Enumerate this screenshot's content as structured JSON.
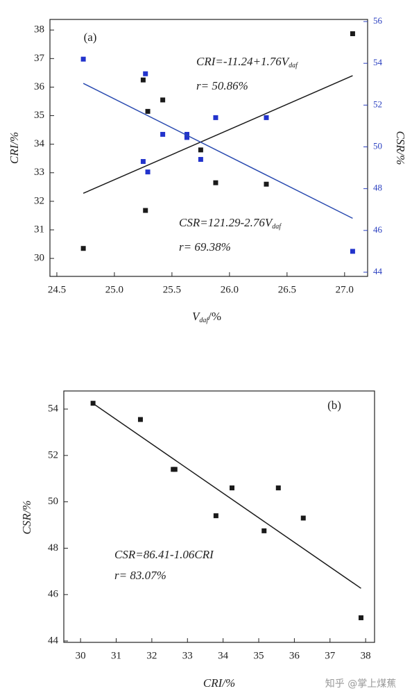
{
  "chart_data": [
    {
      "type": "scatter",
      "panel_label": "(a)",
      "xlabel": {
        "text": "V",
        "sub": "daf",
        "suffix": "/%"
      },
      "ylabel": "CRI/%",
      "y2label": "CSR/%",
      "xlim": [
        24.44,
        27.2
      ],
      "ylim": [
        29.37,
        38.37
      ],
      "y2lim": [
        43.8,
        56.1
      ],
      "xticks": [
        24.5,
        {
          "value": 25,
          "label": "25.0"
        },
        25.5,
        {
          "value": 26,
          "label": "26.0"
        },
        26.5,
        {
          "value": 27,
          "label": "27.0"
        }
      ],
      "yticks": [
        30,
        31,
        32,
        33,
        34,
        35,
        36,
        37,
        38
      ],
      "y2ticks": [
        44,
        46,
        48,
        50,
        52,
        54,
        56
      ],
      "y2_color": "#2a3fc0",
      "series": [
        {
          "mode": "markers",
          "color": "#1a1a1a",
          "x": [
            24.73,
            25.25,
            25.27,
            25.29,
            25.42,
            25.63,
            25.75,
            25.88,
            26.32,
            27.07
          ],
          "values": [
            30.35,
            36.25,
            31.68,
            35.15,
            35.55,
            34.25,
            33.8,
            32.65,
            32.6,
            37.87
          ]
        },
        {
          "mode": "markers",
          "color": "#2233cc",
          "axis": "y2",
          "x": [
            24.73,
            25.27,
            25.25,
            25.29,
            25.42,
            25.63,
            25.63,
            25.75,
            25.88,
            26.32,
            27.07
          ],
          "values": [
            54.2,
            53.5,
            49.3,
            48.8,
            50.6,
            50.6,
            50.45,
            49.4,
            51.4,
            51.4,
            45.0
          ]
        },
        {
          "mode": "line",
          "color": "#1a1a1a",
          "x": [
            24.73,
            27.07
          ],
          "values": [
            32.28,
            36.4
          ]
        },
        {
          "mode": "line",
          "color": "#2a4bb0",
          "axis": "y2",
          "x": [
            24.73,
            27.07
          ],
          "values": [
            53.04,
            46.58
          ]
        }
      ],
      "annotations": [
        {
          "text": "CRI=-11.24+1.76V",
          "sub": "daf"
        },
        {
          "text": "r= 50.86%"
        },
        {
          "text": "CSR=121.29-2.76V",
          "sub": "daf"
        },
        {
          "text": "r= 69.38%"
        }
      ]
    },
    {
      "type": "scatter",
      "panel_label": "(b)",
      "xlabel": {
        "text": "CRI/%"
      },
      "ylabel": "CSR/%",
      "xlim": [
        29.53,
        38.25
      ],
      "ylim": [
        43.94,
        54.78
      ],
      "xticks": [
        30,
        31,
        32,
        33,
        34,
        35,
        36,
        37,
        38
      ],
      "yticks": [
        44,
        46,
        48,
        50,
        52,
        54
      ],
      "series": [
        {
          "mode": "markers",
          "color": "#1a1a1a",
          "x": [
            30.35,
            31.68,
            32.6,
            32.65,
            33.8,
            34.25,
            35.15,
            35.55,
            36.25,
            37.87
          ],
          "values": [
            54.25,
            53.55,
            51.4,
            51.4,
            49.4,
            50.6,
            48.75,
            50.6,
            49.3,
            45.0
          ]
        },
        {
          "mode": "line",
          "color": "#1a1a1a",
          "x": [
            30.35,
            37.87
          ],
          "values": [
            54.24,
            46.27
          ]
        }
      ],
      "annotations": [
        {
          "text": "CSR=86.41-1.06CRI"
        },
        {
          "text": "r= 83.07%"
        }
      ]
    }
  ],
  "watermark": "知乎 @掌上煤蕉"
}
